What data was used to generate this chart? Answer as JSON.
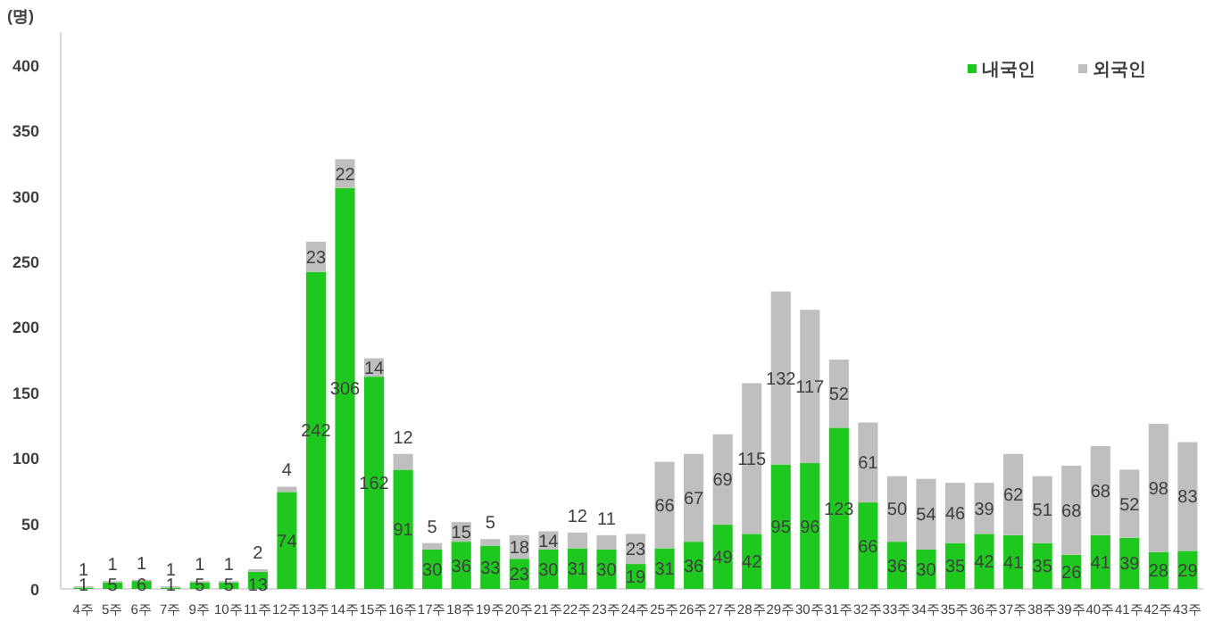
{
  "chart_data": {
    "type": "bar",
    "stacked": true,
    "ylabel": "(명)",
    "categories": [
      "4주",
      "5주",
      "6주",
      "7주",
      "9주",
      "10주",
      "11주",
      "12주",
      "13주",
      "14주",
      "15주",
      "16주",
      "17주",
      "18주",
      "19주",
      "20주",
      "21주",
      "22주",
      "23주",
      "24주",
      "25주",
      "26주",
      "27주",
      "28주",
      "29주",
      "30주",
      "31주",
      "32주",
      "33주",
      "34주",
      "35주",
      "36주",
      "37주",
      "38주",
      "39주",
      "40주",
      "41주",
      "42주",
      "43주"
    ],
    "series": [
      {
        "name": "내국인",
        "color": "#1ec81e",
        "values": [
          1,
          5,
          6,
          1,
          5,
          5,
          13,
          74,
          242,
          306,
          162,
          91,
          30,
          36,
          33,
          23,
          30,
          31,
          30,
          19,
          31,
          36,
          49,
          42,
          95,
          96,
          123,
          66,
          36,
          30,
          35,
          42,
          41,
          35,
          26,
          41,
          39,
          28,
          29
        ]
      },
      {
        "name": "외국인",
        "color": "#bfbfbf",
        "values": [
          1,
          1,
          1,
          1,
          1,
          1,
          2,
          4,
          23,
          22,
          14,
          12,
          5,
          15,
          5,
          18,
          14,
          12,
          11,
          23,
          66,
          67,
          69,
          115,
          132,
          117,
          52,
          61,
          50,
          54,
          46,
          39,
          62,
          51,
          68,
          68,
          52,
          98,
          83
        ]
      }
    ],
    "ylim": [
      0,
      425
    ],
    "yticks": [
      0,
      50,
      100,
      150,
      200,
      250,
      300,
      350,
      400
    ],
    "grid": false,
    "legend": "top right",
    "data_labels": true
  }
}
